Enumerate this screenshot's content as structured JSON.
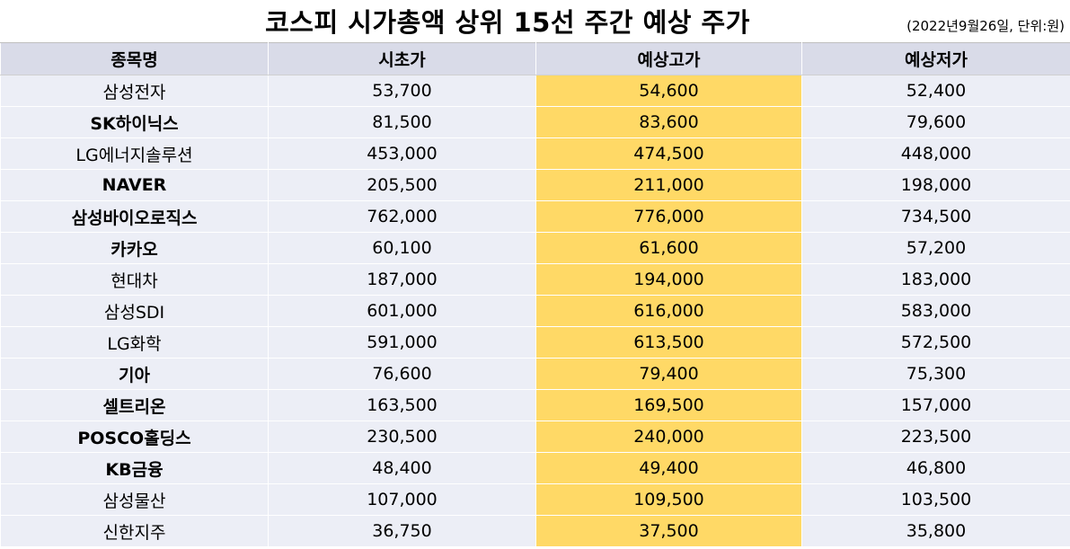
{
  "title": "코스피 시가총액 상위 15선 주간 예상 주가",
  "subtitle": "(2022년9월26일, 단위:원)",
  "headers": [
    "종목명",
    "시초가",
    "예상고가",
    "예상저가"
  ],
  "rows": [
    {
      "name": "삼성전자",
      "bold": false,
      "open": "53,700",
      "high": "54,600",
      "low": "52,400"
    },
    {
      "name": "SK하이닉스",
      "bold": true,
      "open": "81,500",
      "high": "83,600",
      "low": "79,600"
    },
    {
      "name": "LG에너지솔루션",
      "bold": false,
      "open": "453,000",
      "high": "474,500",
      "low": "448,000"
    },
    {
      "name": "NAVER",
      "bold": true,
      "open": "205,500",
      "high": "211,000",
      "low": "198,000"
    },
    {
      "name": "삼성바이오로직스",
      "bold": true,
      "open": "762,000",
      "high": "776,000",
      "low": "734,500"
    },
    {
      "name": "카카오",
      "bold": true,
      "open": "60,100",
      "high": "61,600",
      "low": "57,200"
    },
    {
      "name": "현대차",
      "bold": false,
      "open": "187,000",
      "high": "194,000",
      "low": "183,000"
    },
    {
      "name": "삼성SDI",
      "bold": false,
      "open": "601,000",
      "high": "616,000",
      "low": "583,000"
    },
    {
      "name": "LG화학",
      "bold": false,
      "open": "591,000",
      "high": "613,500",
      "low": "572,500"
    },
    {
      "name": "기아",
      "bold": true,
      "open": "76,600",
      "high": "79,400",
      "low": "75,300"
    },
    {
      "name": "셀트리온",
      "bold": true,
      "open": "163,500",
      "high": "169,500",
      "low": "157,000"
    },
    {
      "name": "POSCO홀딩스",
      "bold": true,
      "open": "230,500",
      "high": "240,000",
      "low": "223,500"
    },
    {
      "name": "KB금융",
      "bold": true,
      "open": "48,400",
      "high": "49,400",
      "low": "46,800"
    },
    {
      "name": "삼성물산",
      "bold": false,
      "open": "107,000",
      "high": "109,500",
      "low": "103,500"
    },
    {
      "name": "신한지주",
      "bold": false,
      "open": "36,750",
      "high": "37,500",
      "low": "35,800"
    }
  ],
  "colors": {
    "header_bg": "#d9dbe8",
    "row_bg": "#eceef6",
    "highlight": "#ffd966"
  }
}
